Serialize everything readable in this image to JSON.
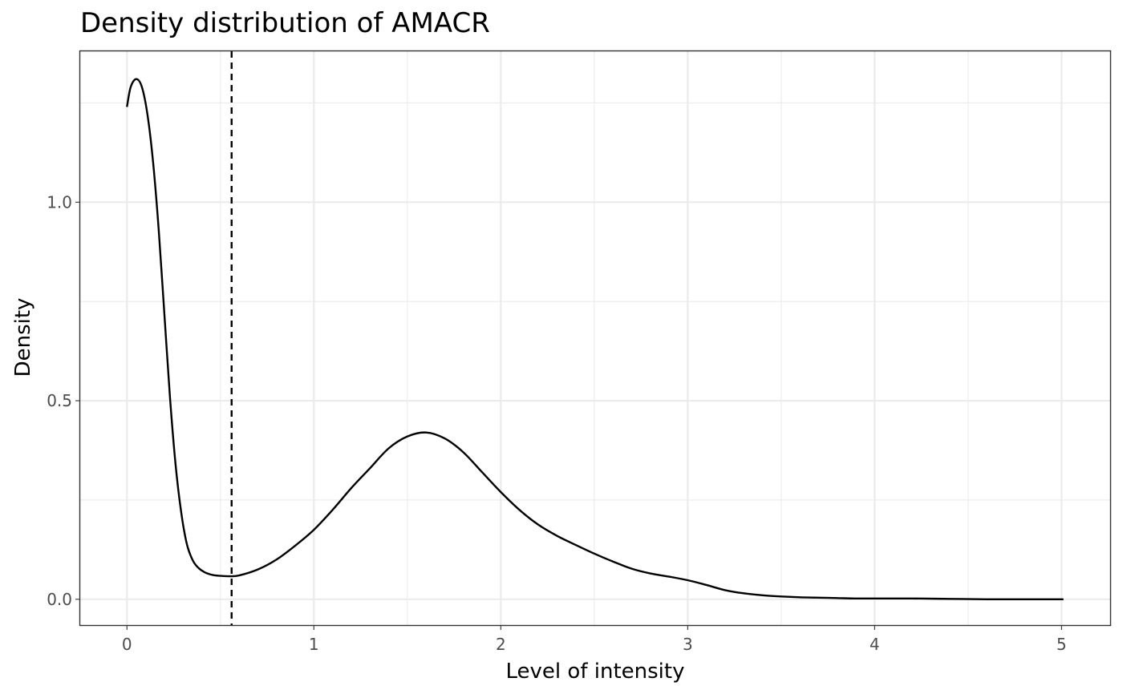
{
  "chart_data": {
    "type": "line",
    "title": "Density distribution of AMACR",
    "xlabel": "Level of intensity",
    "ylabel": "Density",
    "xlim": [
      -0.25,
      5.26
    ],
    "ylim": [
      -0.065,
      1.38
    ],
    "x_major_ticks": [
      0,
      1,
      2,
      3,
      4,
      5
    ],
    "x_tick_labels": [
      "0",
      "1",
      "2",
      "3",
      "4",
      "5"
    ],
    "x_minor_ticks": [
      0.5,
      1.5,
      2.5,
      3.5,
      4.5
    ],
    "y_major_ticks": [
      0.0,
      0.5,
      1.0
    ],
    "y_tick_labels": [
      "0.0",
      "0.5",
      "1.0"
    ],
    "y_minor_ticks": [
      0.25,
      0.75,
      1.25
    ],
    "grid": true,
    "threshold_x": 0.56,
    "series": [
      {
        "x": [
          0.0,
          0.02,
          0.05,
          0.08,
          0.11,
          0.14,
          0.17,
          0.2,
          0.23,
          0.26,
          0.29,
          0.32,
          0.35,
          0.38,
          0.42,
          0.46,
          0.5,
          0.55,
          0.6,
          0.7,
          0.8,
          0.9,
          1.0,
          1.1,
          1.2,
          1.3,
          1.4,
          1.5,
          1.6,
          1.7,
          1.8,
          1.9,
          2.0,
          2.1,
          2.2,
          2.3,
          2.4,
          2.5,
          2.6,
          2.7,
          2.8,
          2.9,
          3.0,
          3.1,
          3.2,
          3.3,
          3.4,
          3.5,
          3.6,
          3.7,
          3.8,
          3.9,
          4.0,
          4.2,
          4.4,
          4.6,
          4.8,
          5.01
        ],
        "y": [
          1.24,
          1.29,
          1.31,
          1.29,
          1.22,
          1.1,
          0.93,
          0.72,
          0.51,
          0.34,
          0.22,
          0.14,
          0.1,
          0.08,
          0.067,
          0.061,
          0.059,
          0.058,
          0.06,
          0.075,
          0.1,
          0.135,
          0.175,
          0.225,
          0.28,
          0.33,
          0.38,
          0.41,
          0.42,
          0.405,
          0.37,
          0.32,
          0.27,
          0.225,
          0.188,
          0.16,
          0.137,
          0.115,
          0.095,
          0.077,
          0.065,
          0.057,
          0.048,
          0.036,
          0.023,
          0.015,
          0.01,
          0.007,
          0.005,
          0.004,
          0.003,
          0.002,
          0.002,
          0.002,
          0.001,
          0.0,
          0.0,
          0.0
        ]
      }
    ]
  }
}
